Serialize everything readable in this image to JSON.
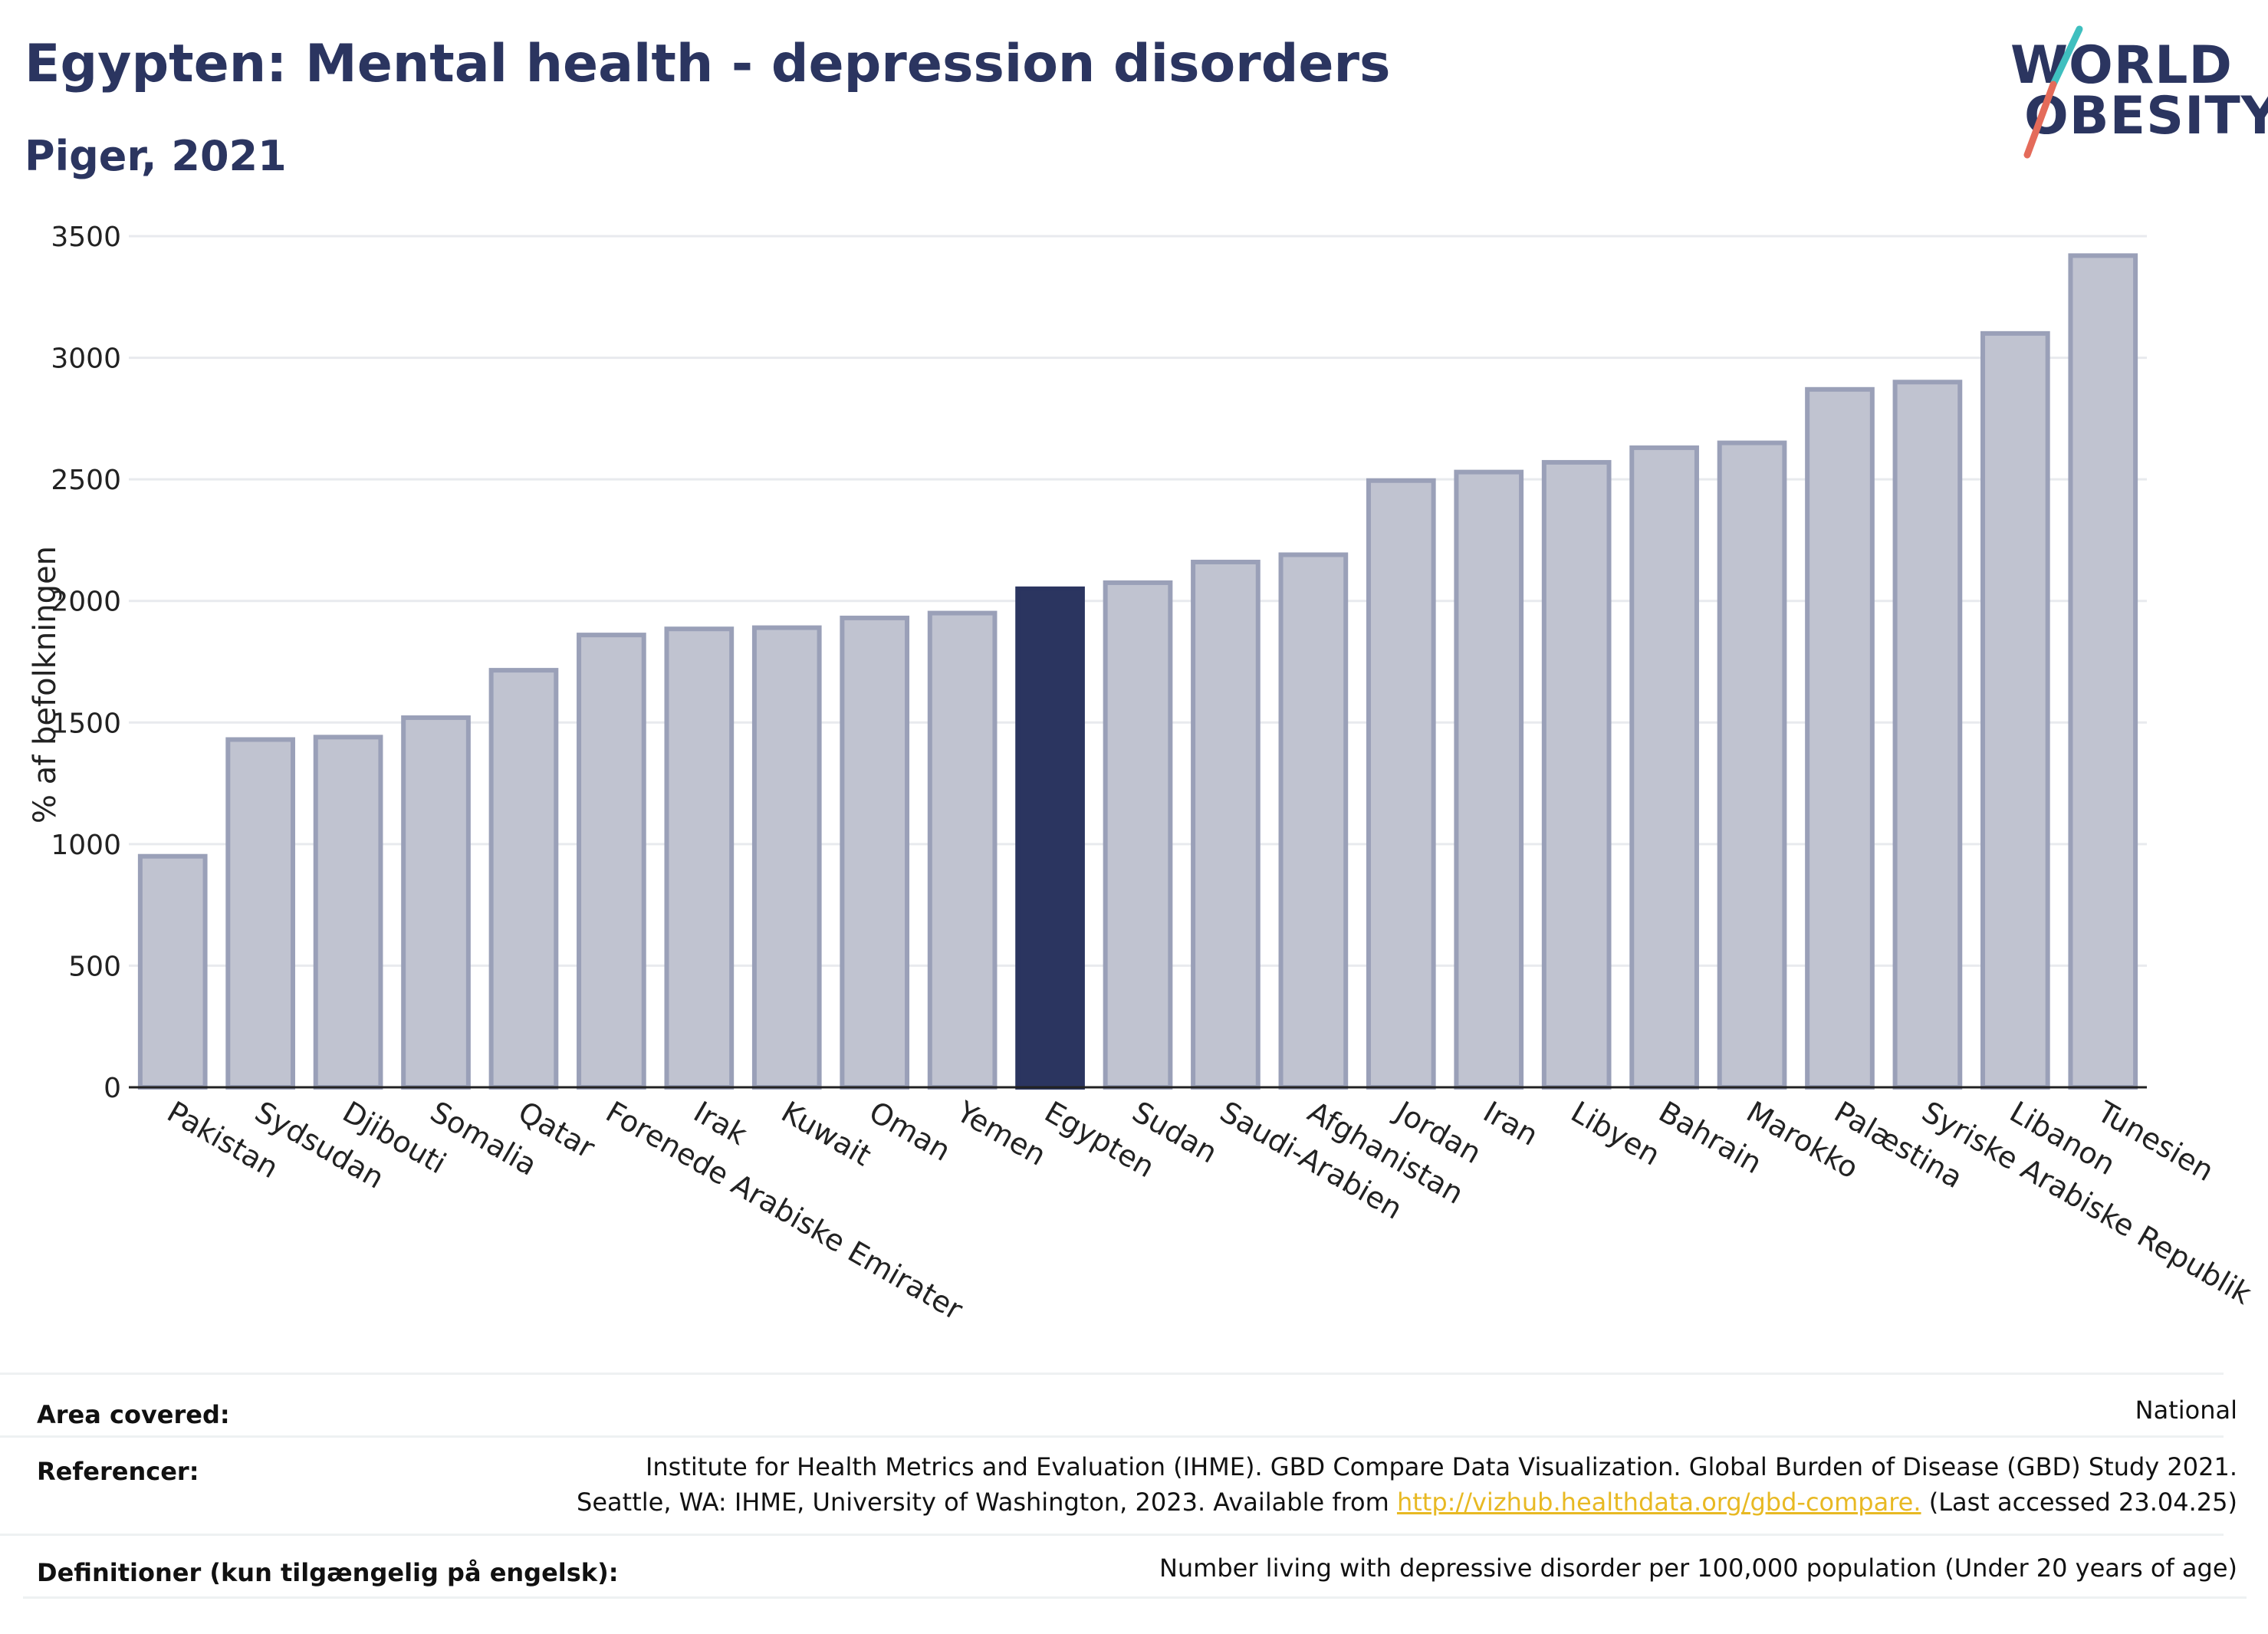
{
  "header": {
    "title": "Egypten: Mental health - depression disorders",
    "subtitle": "Piger, 2021"
  },
  "logo": {
    "line1": "WORLD",
    "line2": "OBESITY",
    "colors": {
      "navy": "#2b3560",
      "teal": "#3fbfbf",
      "coral": "#e46b5a"
    }
  },
  "chart_data": {
    "type": "bar",
    "title": "",
    "ylabel": "% af befolkningen",
    "xlabel": "",
    "ylim": [
      0,
      3500
    ],
    "yticks": [
      0,
      500,
      1000,
      1500,
      2000,
      2500,
      3000,
      3500
    ],
    "grid": true,
    "highlight": "Egypten",
    "colors": {
      "bar": "#c0c3d0",
      "bar_border": "#9aa0b8",
      "highlight": "#2b3560",
      "grid": "#e8eaee",
      "axis": "#222222"
    },
    "categories": [
      "Pakistan",
      "Sydsudan",
      "Djibouti",
      "Somalia",
      "Qatar",
      "Forenede Arabiske Emirater",
      "Irak",
      "Kuwait",
      "Oman",
      "Yemen",
      "Egypten",
      "Sudan",
      "Saudi-Arabien",
      "Afghanistan",
      "Jordan",
      "Iran",
      "Libyen",
      "Bahrain",
      "Marokko",
      "Palæstina",
      "Syriske Arabiske Republik",
      "Libanon",
      "Tunesien"
    ],
    "values": [
      950,
      1430,
      1440,
      1520,
      1715,
      1860,
      1885,
      1890,
      1930,
      1950,
      2050,
      2075,
      2160,
      2190,
      2495,
      2530,
      2570,
      2630,
      2650,
      2870,
      2900,
      3100,
      3420
    ]
  },
  "footer": {
    "area_label": "Area covered:",
    "area_value": "National",
    "ref_label": "Referencer:",
    "ref_line1": "Institute for Health Metrics and Evaluation (IHME). GBD Compare Data Visualization. Global Burden of Disease (GBD) Study 2021.",
    "ref_line2_pre": "Seattle, WA: IHME, University of Washington, 2023. Available from",
    "ref_link": "http://vizhub.healthdata.org/gbd-compare.",
    "ref_line2_post": "(Last accessed 23.04.25)",
    "def_label": "Definitioner (kun tilgængelig på engelsk):",
    "def_value": "Number living with depressive disorder per 100,000 population (Under 20 years of age)"
  }
}
